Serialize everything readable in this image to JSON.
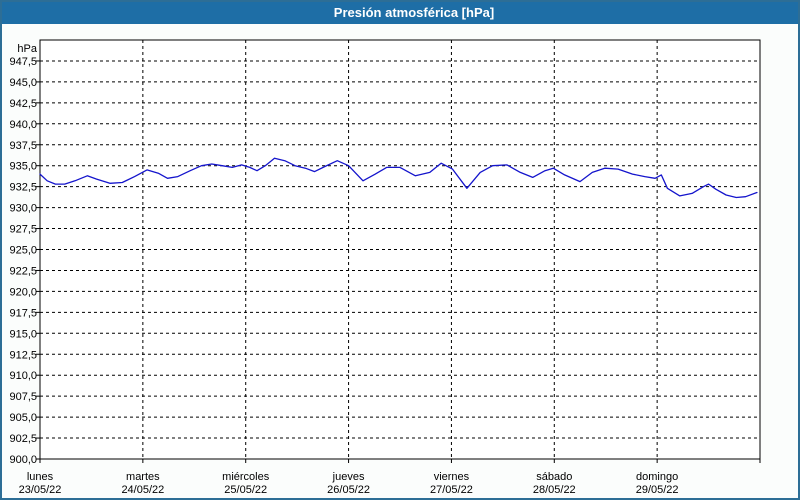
{
  "title": "Presión atmosférica [hPa]",
  "colors": {
    "titlebar_bg": "#1e6ea6",
    "titlebar_text": "#ffffff",
    "frame_border": "#2d6e96",
    "frame_background": "#fbfdfc",
    "plot_background": "#ffffff",
    "grid_color": "#000000",
    "axis_text": "#000000",
    "line_color": "#1414cc"
  },
  "chart_data": {
    "type": "line",
    "title": "Presión atmosférica [hPa]",
    "grid": true,
    "legend": "none",
    "y_axis": {
      "unit": "hPa",
      "min": 900,
      "max": 950,
      "grid_step": 2.5,
      "decimal_separator": ",",
      "tick_labels": [
        "947,5",
        "945,0",
        "942,5",
        "940,0",
        "937,5",
        "935,0",
        "932,5",
        "930,0",
        "927,5",
        "925,0",
        "922,5",
        "920,0",
        "917,5",
        "915,0",
        "912,5",
        "910,0",
        "907,5",
        "905,0",
        "902,5",
        "900,0"
      ]
    },
    "x_axis": {
      "span_days": 7,
      "days": [
        {
          "day": "lunes",
          "date": "23/05/22"
        },
        {
          "day": "martes",
          "date": "24/05/22"
        },
        {
          "day": "miércoles",
          "date": "25/05/22"
        },
        {
          "day": "jueves",
          "date": "26/05/22"
        },
        {
          "day": "viernes",
          "date": "27/05/22"
        },
        {
          "day": "sábado",
          "date": "28/05/22"
        },
        {
          "day": "domingo",
          "date": "29/05/22"
        }
      ]
    },
    "series": [
      {
        "name": "Presión atmosférica [hPa]",
        "color": "#1414cc",
        "x_unit": "days_from_lunes_00h",
        "points": [
          [
            0.0,
            934.0
          ],
          [
            0.07,
            933.2
          ],
          [
            0.15,
            932.8
          ],
          [
            0.24,
            932.8
          ],
          [
            0.34,
            933.2
          ],
          [
            0.46,
            933.8
          ],
          [
            0.55,
            933.4
          ],
          [
            0.68,
            932.9
          ],
          [
            0.8,
            933.0
          ],
          [
            0.92,
            933.7
          ],
          [
            1.04,
            934.5
          ],
          [
            1.15,
            934.1
          ],
          [
            1.24,
            933.5
          ],
          [
            1.34,
            933.7
          ],
          [
            1.46,
            934.4
          ],
          [
            1.57,
            935.0
          ],
          [
            1.67,
            935.2
          ],
          [
            1.77,
            935.0
          ],
          [
            1.87,
            934.8
          ],
          [
            1.96,
            935.1
          ],
          [
            2.04,
            934.8
          ],
          [
            2.11,
            934.4
          ],
          [
            2.19,
            935.0
          ],
          [
            2.28,
            935.9
          ],
          [
            2.38,
            935.6
          ],
          [
            2.48,
            935.0
          ],
          [
            2.58,
            934.7
          ],
          [
            2.67,
            934.3
          ],
          [
            2.77,
            934.9
          ],
          [
            2.89,
            935.6
          ],
          [
            3.0,
            935.0
          ],
          [
            3.14,
            933.2
          ],
          [
            3.26,
            934.0
          ],
          [
            3.37,
            934.8
          ],
          [
            3.5,
            934.8
          ],
          [
            3.65,
            933.8
          ],
          [
            3.79,
            934.2
          ],
          [
            3.9,
            935.3
          ],
          [
            4.01,
            934.6
          ],
          [
            4.15,
            932.3
          ],
          [
            4.28,
            934.2
          ],
          [
            4.4,
            935.0
          ],
          [
            4.54,
            935.1
          ],
          [
            4.67,
            934.2
          ],
          [
            4.79,
            933.6
          ],
          [
            4.91,
            934.4
          ],
          [
            4.99,
            934.7
          ],
          [
            5.1,
            933.9
          ],
          [
            5.25,
            933.1
          ],
          [
            5.37,
            934.2
          ],
          [
            5.49,
            934.7
          ],
          [
            5.62,
            934.6
          ],
          [
            5.76,
            934.0
          ],
          [
            5.88,
            933.7
          ],
          [
            5.98,
            933.5
          ],
          [
            6.04,
            933.9
          ],
          [
            6.1,
            932.3
          ],
          [
            6.22,
            931.4
          ],
          [
            6.34,
            931.7
          ],
          [
            6.45,
            932.5
          ],
          [
            6.5,
            932.8
          ],
          [
            6.57,
            932.2
          ],
          [
            6.67,
            931.5
          ],
          [
            6.77,
            931.2
          ],
          [
            6.86,
            931.3
          ],
          [
            6.97,
            931.8
          ]
        ]
      }
    ]
  }
}
